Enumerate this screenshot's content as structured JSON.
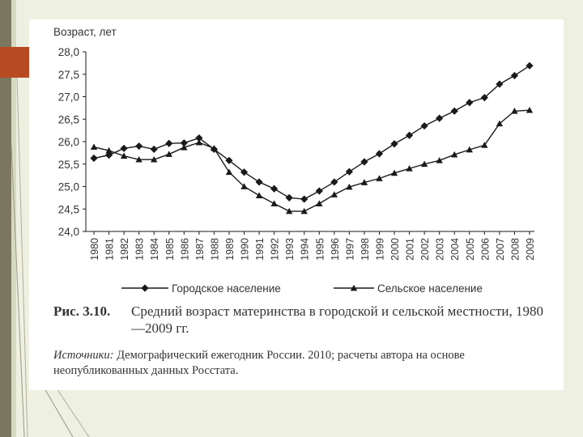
{
  "figure": {
    "label": "Рис. 3.10.",
    "title": "Средний возраст материнства в городской и сельской местности, 1980—2009 гг.",
    "sources_label": "Источники:",
    "sources_text": " Демографический ежегодник России. 2010; расчеты автора на основе неопубликованных данных Росстата."
  },
  "colors": {
    "background": "#eef1e2",
    "accent": "#b84a22",
    "band": "#7a7660",
    "line": "#1a1a1a"
  },
  "chart_data": {
    "type": "line",
    "ylabel": "Возраст, лет",
    "xlabel": "",
    "ylim": [
      24.0,
      28.0
    ],
    "yticks": [
      "24,0",
      "24,5",
      "25,0",
      "25,5",
      "26,0",
      "26,5",
      "27,0",
      "27,5",
      "28,0"
    ],
    "categories": [
      "1980",
      "1981",
      "1982",
      "1983",
      "1984",
      "1985",
      "1986",
      "1987",
      "1988",
      "1989",
      "1990",
      "1991",
      "1992",
      "1993",
      "1994",
      "1995",
      "1996",
      "1997",
      "1998",
      "1999",
      "2000",
      "2001",
      "2002",
      "2003",
      "2004",
      "2005",
      "2006",
      "2007",
      "2008",
      "2009"
    ],
    "series": [
      {
        "name": "Городское население",
        "marker": "diamond",
        "values": [
          25.63,
          25.7,
          25.85,
          25.9,
          25.83,
          25.96,
          25.97,
          26.08,
          25.83,
          25.58,
          25.32,
          25.1,
          24.95,
          24.75,
          24.72,
          24.9,
          25.1,
          25.33,
          25.55,
          25.73,
          25.95,
          26.14,
          26.35,
          26.52,
          26.68,
          26.87,
          26.98,
          27.28,
          27.47,
          27.69
        ]
      },
      {
        "name": "Сельское население",
        "marker": "triangle",
        "values": [
          25.88,
          25.8,
          25.68,
          25.6,
          25.6,
          25.72,
          25.87,
          25.98,
          25.85,
          25.32,
          25.0,
          24.8,
          24.62,
          24.45,
          24.45,
          24.62,
          24.82,
          24.99,
          25.09,
          25.18,
          25.3,
          25.4,
          25.5,
          25.58,
          25.71,
          25.82,
          25.92,
          26.4,
          26.68,
          26.7
        ]
      }
    ],
    "legend_position": "bottom",
    "grid": false
  }
}
